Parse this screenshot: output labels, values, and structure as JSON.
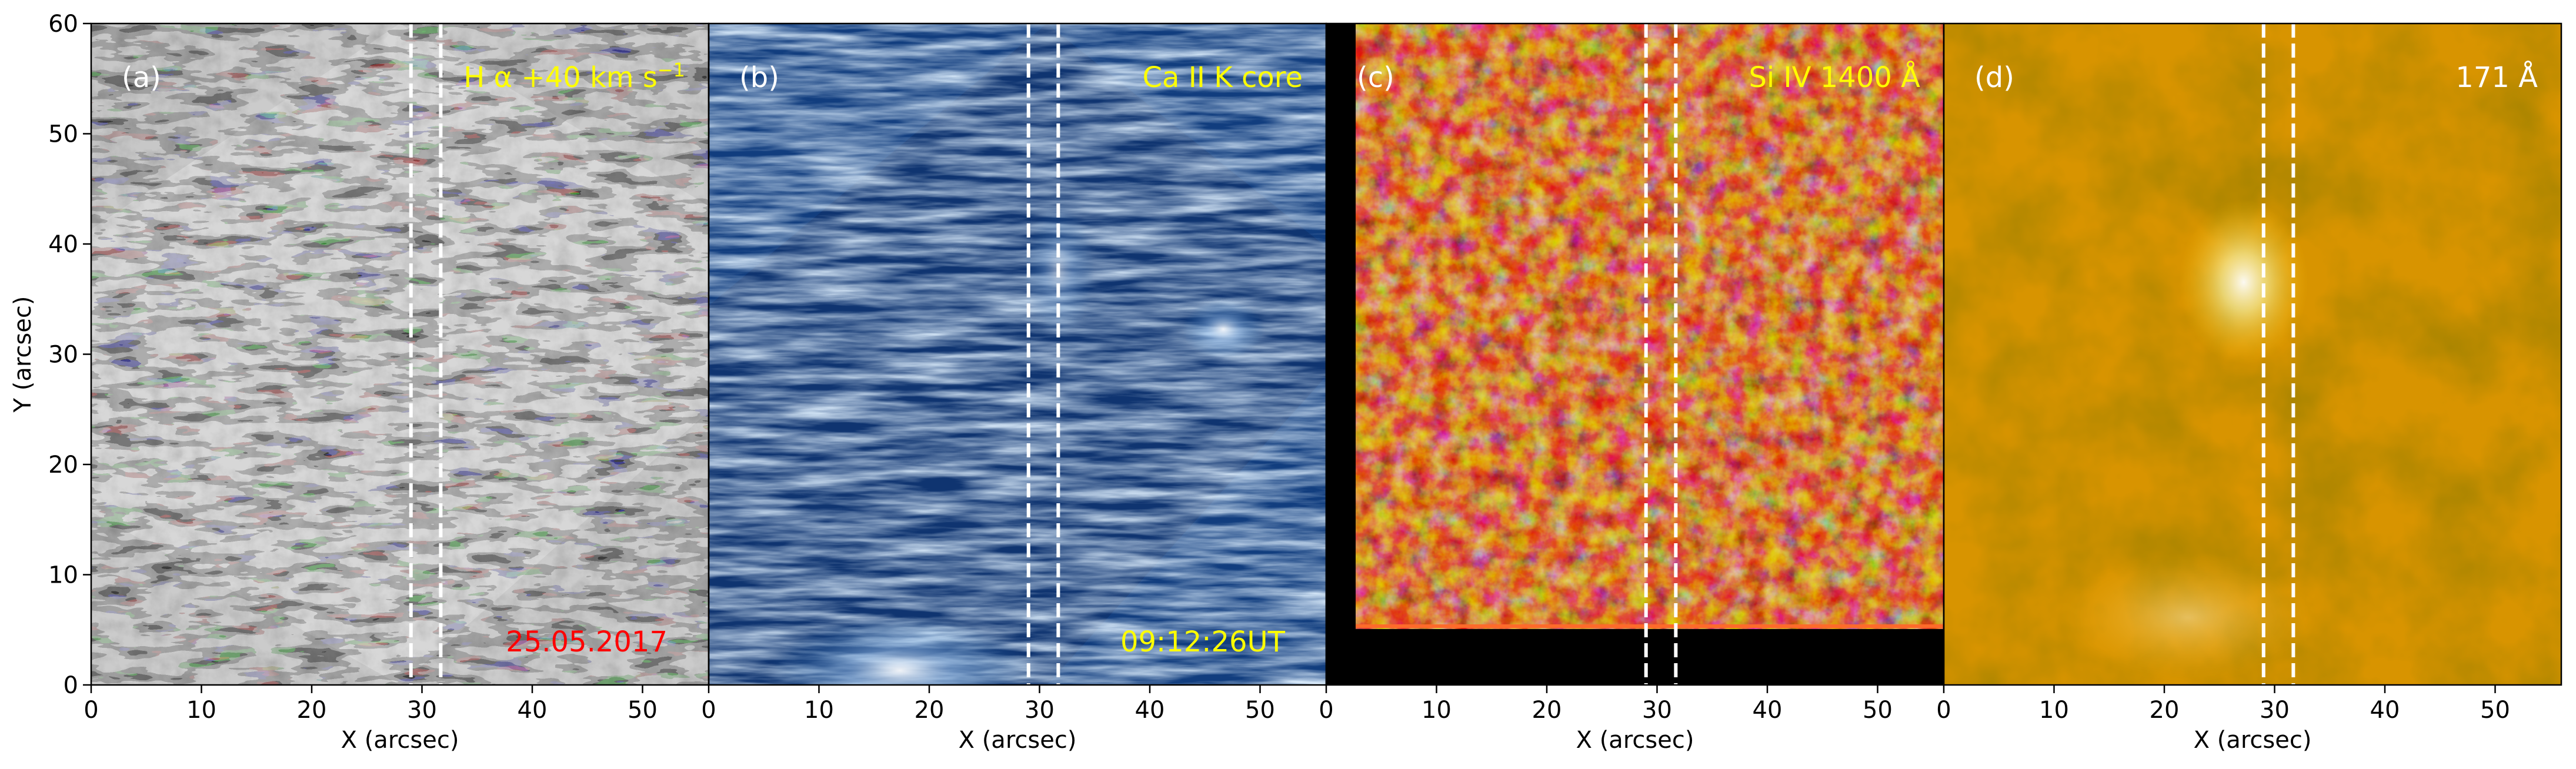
{
  "figure": {
    "ylabel": "Y (arcsec)"
  },
  "chart_data": [
    {
      "type": "heatmap",
      "panel": "(a)",
      "channel_label": "H α +40 km s",
      "channel_label_sup": "−1",
      "channel_color": "#ffff00",
      "annotation": "25.05.2017",
      "annotation_color": "#ff0000",
      "colormap": "gray",
      "xlabel": "X (arcsec)",
      "xlim": [
        0,
        56
      ],
      "ylim": [
        0,
        60
      ],
      "xticks": [
        0,
        10,
        20,
        30,
        40,
        50
      ],
      "yticks": [
        0,
        10,
        20,
        30,
        40,
        50,
        60
      ],
      "vlines": [
        29,
        31.7
      ]
    },
    {
      "type": "heatmap",
      "panel": "(b)",
      "channel_label": "Ca II K core",
      "channel_color": "#ffff00",
      "annotation": "09:12:26UT",
      "annotation_color": "#ffff00",
      "colormap": "blues",
      "xlabel": "X (arcsec)",
      "xlim": [
        0,
        56
      ],
      "ylim": [
        0,
        60
      ],
      "xticks": [
        0,
        10,
        20,
        30,
        40,
        50
      ],
      "vlines": [
        29,
        31.7
      ]
    },
    {
      "type": "heatmap",
      "panel": "(c)",
      "channel_label": "Si IV 1400 Å",
      "channel_color": "#ffff00",
      "colormap": "hot",
      "xlabel": "X (arcsec)",
      "xlim": [
        0,
        56
      ],
      "ylim": [
        0,
        60
      ],
      "xticks": [
        0,
        10,
        20,
        30,
        40,
        50
      ],
      "vlines": [
        29,
        31.7
      ]
    },
    {
      "type": "heatmap",
      "panel": "(d)",
      "channel_label": "171 Å",
      "channel_color": "#ffffff",
      "colormap": "sdoaia171",
      "xlabel": "X (arcsec)",
      "xlim": [
        0,
        56
      ],
      "ylim": [
        0,
        60
      ],
      "xticks": [
        0,
        10,
        20,
        30,
        40,
        50
      ],
      "vlines": [
        29,
        31.7
      ]
    }
  ]
}
